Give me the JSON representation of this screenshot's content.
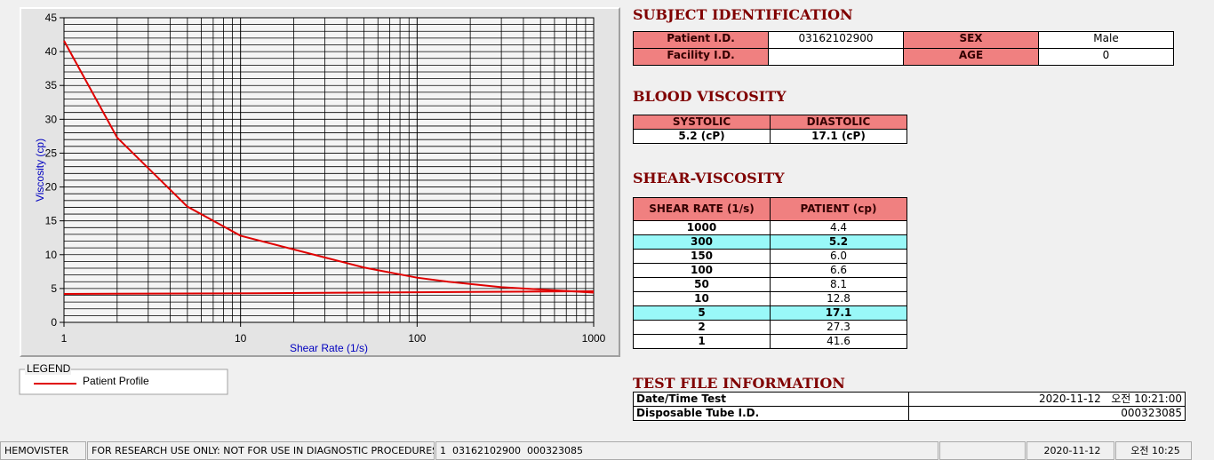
{
  "chart_data": {
    "type": "line",
    "x_label": "Shear Rate (1/s)",
    "y_label": "Viscosity (cp)",
    "log_x": true,
    "grid": true,
    "xlim": [
      1,
      1000
    ],
    "xticks": [
      1,
      10,
      100,
      1000
    ],
    "xgrid_minor": [
      2,
      3,
      4,
      5,
      6,
      7,
      8,
      9,
      20,
      30,
      40,
      50,
      60,
      70,
      80,
      90,
      200,
      300,
      400,
      500,
      600,
      700,
      800,
      900
    ],
    "ylim": [
      0,
      45
    ],
    "yticks": [
      0,
      5,
      10,
      15,
      20,
      25,
      30,
      35,
      40,
      45
    ],
    "ygrid_step": 1,
    "legend_title": "LEGEND",
    "series": [
      {
        "name": "Patient Profile",
        "color": "#e00000",
        "x": [
          1,
          2,
          5,
          10,
          50,
          100,
          150,
          300,
          1000
        ],
        "values": [
          41.6,
          27.3,
          17.1,
          12.8,
          8.1,
          6.6,
          6.0,
          5.2,
          4.4
        ]
      },
      {
        "color": "#e00000",
        "x": [
          1,
          12,
          1000
        ],
        "values": [
          4.2,
          4.3,
          4.6
        ]
      }
    ]
  },
  "subject": {
    "title": "SUBJECT IDENTIFICATION",
    "rows": [
      [
        "Patient I.D.",
        "03162102900",
        "SEX",
        "Male"
      ],
      [
        "Facility I.D.",
        null,
        "AGE",
        "0"
      ]
    ]
  },
  "blood": {
    "title": "BLOOD VISCOSITY",
    "headers": [
      "SYSTOLIC",
      "DIASTOLIC"
    ],
    "values": [
      "5.2 (cP)",
      "17.1 (cP)"
    ]
  },
  "shear": {
    "title": "SHEAR-VISCOSITY",
    "headers": [
      "SHEAR RATE (1/s)",
      "PATIENT (cp)"
    ],
    "rows": [
      [
        "1000",
        "4.4"
      ],
      [
        "300",
        "5.2"
      ],
      [
        "150",
        "6.0"
      ],
      [
        "100",
        "6.6"
      ],
      [
        "50",
        "8.1"
      ],
      [
        "10",
        "12.8"
      ],
      [
        "5",
        "17.1"
      ],
      [
        "2",
        "27.3"
      ],
      [
        "1",
        "41.6"
      ]
    ],
    "highlight_rows": [
      1,
      6
    ]
  },
  "test_file": {
    "title": "TEST FILE INFORMATION",
    "rows": [
      [
        "Date/Time Test",
        "2020-11-12   오전 10:21:00"
      ],
      [
        "Disposable Tube I.D.",
        "000323085"
      ]
    ]
  },
  "status_bar": [
    "HEMOVISTER",
    "FOR RESEARCH USE ONLY: NOT FOR USE IN DIAGNOSTIC PROCEDURES",
    "1  03162102900  000323085",
    null,
    "2020-11-12",
    "오전 10:25"
  ]
}
